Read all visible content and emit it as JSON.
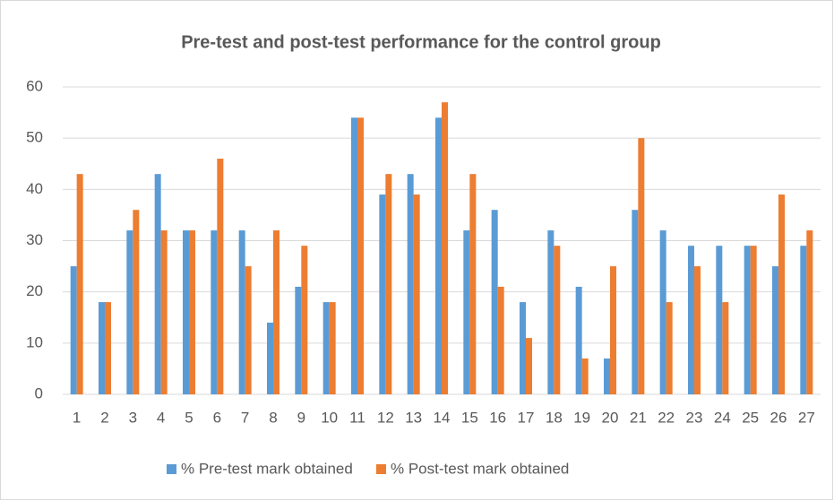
{
  "chart_data": {
    "type": "bar",
    "title": "Pre-test and post-test performance for the control group",
    "categories": [
      "1",
      "2",
      "3",
      "4",
      "5",
      "6",
      "7",
      "8",
      "9",
      "10",
      "11",
      "12",
      "13",
      "14",
      "15",
      "16",
      "17",
      "18",
      "19",
      "20",
      "21",
      "22",
      "23",
      "24",
      "25",
      "26",
      "27"
    ],
    "series": [
      {
        "name": "% Pre-test mark obtained",
        "color": "#5b9bd5",
        "values": [
          25,
          18,
          32,
          43,
          32,
          32,
          32,
          14,
          21,
          18,
          54,
          39,
          43,
          54,
          32,
          36,
          18,
          32,
          21,
          7,
          36,
          32,
          29,
          29,
          29,
          25,
          29
        ]
      },
      {
        "name": "% Post-test mark obtained",
        "color": "#ed7d31",
        "values": [
          43,
          18,
          36,
          32,
          32,
          46,
          25,
          32,
          29,
          18,
          54,
          43,
          39,
          57,
          43,
          21,
          11,
          29,
          7,
          25,
          50,
          18,
          25,
          18,
          29,
          39,
          32
        ]
      }
    ],
    "ylim": [
      0,
      60
    ],
    "yticks": [
      0,
      10,
      20,
      30,
      40,
      50,
      60
    ],
    "grid": true,
    "legend": "bottom"
  }
}
